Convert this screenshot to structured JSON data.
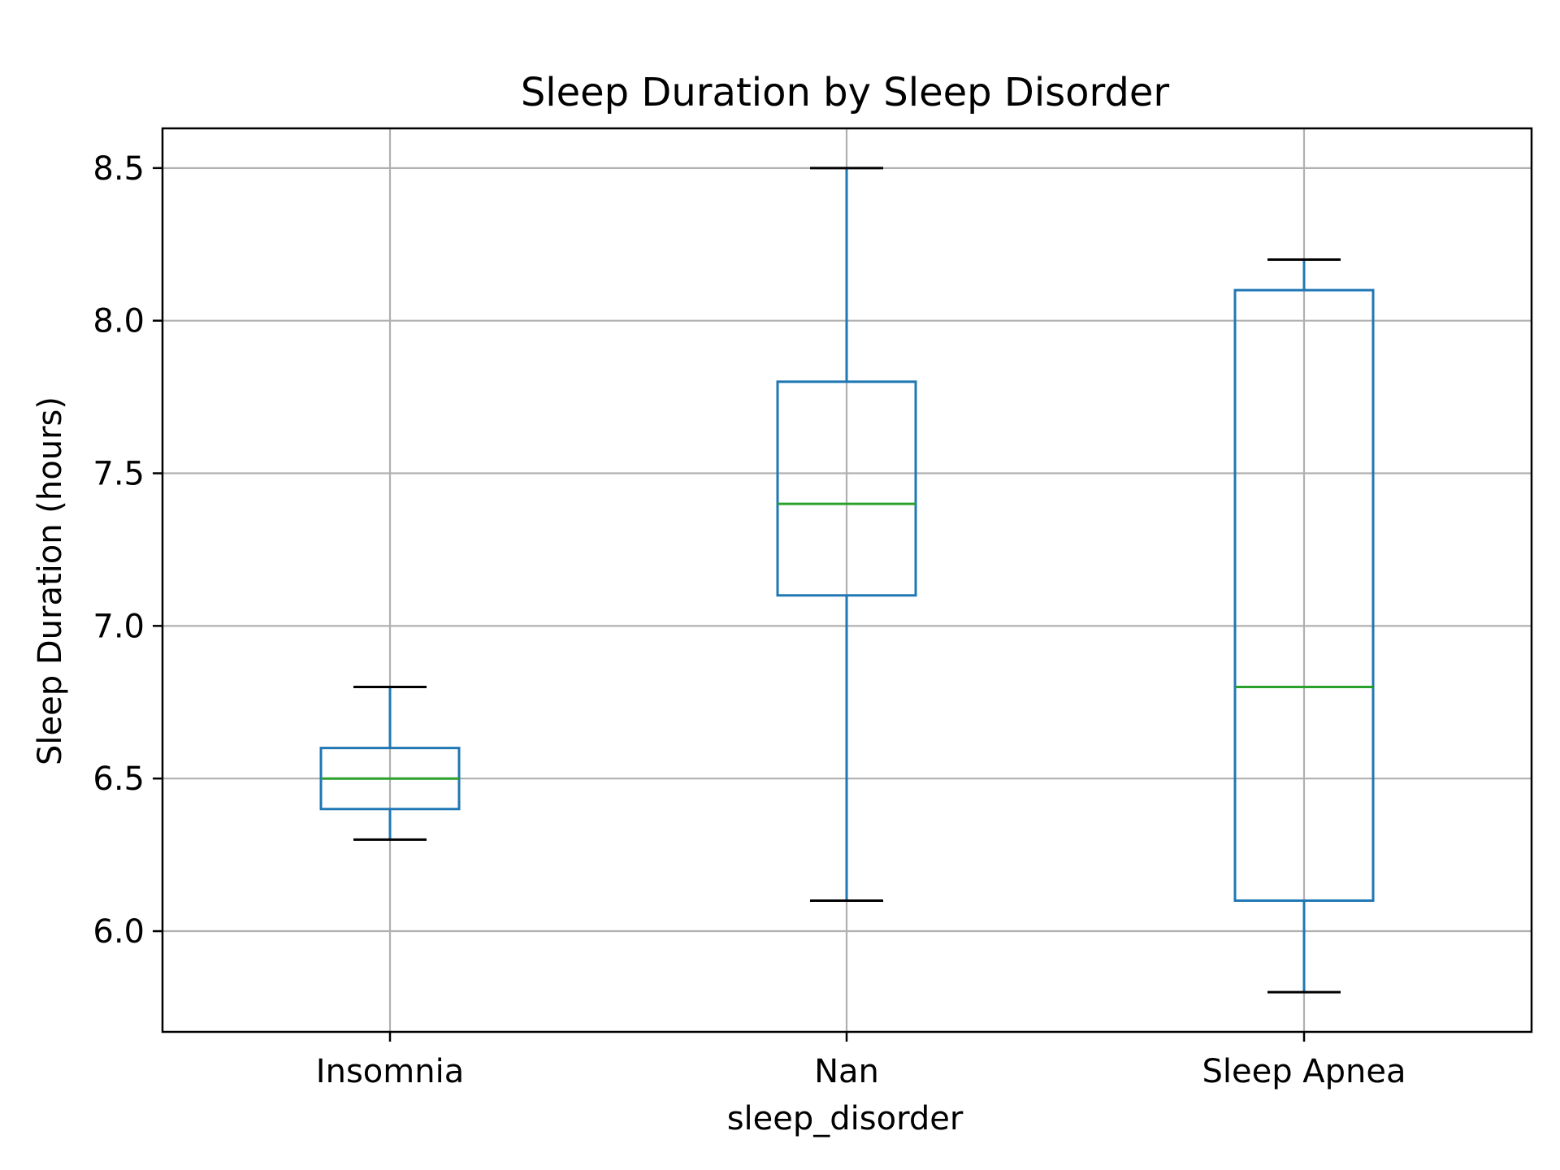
{
  "chart_data": {
    "type": "box",
    "title": "Sleep Duration by Sleep Disorder",
    "xlabel": "sleep_disorder",
    "ylabel": "Sleep Duration (hours)",
    "ylim": [
      5.67,
      8.63
    ],
    "yticks": [
      6.0,
      6.5,
      7.0,
      7.5,
      8.0,
      8.5
    ],
    "ytick_labels": [
      "6.0",
      "6.5",
      "7.0",
      "7.5",
      "8.0",
      "8.5"
    ],
    "grid": true,
    "categories": [
      "Insomnia",
      "Nan",
      "Sleep Apnea"
    ],
    "boxes": [
      {
        "category": "Insomnia",
        "whisker_low": 6.3,
        "q1": 6.4,
        "median": 6.5,
        "q3": 6.6,
        "whisker_high": 6.8
      },
      {
        "category": "Nan",
        "whisker_low": 6.1,
        "q1": 7.1,
        "median": 7.4,
        "q3": 7.8,
        "whisker_high": 8.5
      },
      {
        "category": "Sleep Apnea",
        "whisker_low": 5.8,
        "q1": 6.1,
        "median": 6.8,
        "q3": 8.1,
        "whisker_high": 8.2
      }
    ],
    "colors": {
      "box": "#1f77b4",
      "median": "#2ca02c",
      "cap": "#000000",
      "grid": "#b0b0b0",
      "axes": "#000000"
    }
  }
}
